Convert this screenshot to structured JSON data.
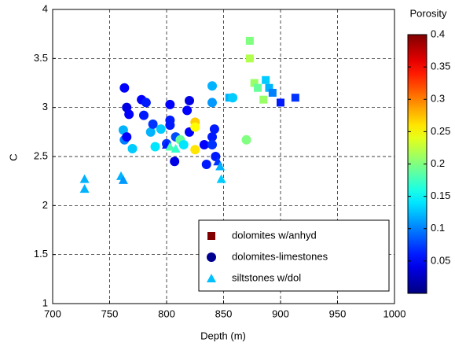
{
  "chart_data": {
    "type": "scatter",
    "xlabel": "Depth (m)",
    "ylabel": "C",
    "xlim": [
      700,
      1000
    ],
    "xticks": [
      700,
      750,
      800,
      850,
      900,
      950,
      1000
    ],
    "ylim": [
      1,
      4
    ],
    "yticks": [
      1,
      1.5,
      2,
      2.5,
      3,
      3.5,
      4
    ],
    "grid": true,
    "legend": "lower right",
    "colorbar": {
      "label": "Porosity",
      "lim": [
        0,
        0.4
      ],
      "ticks": [
        0.05,
        0.1,
        0.15,
        0.2,
        0.25,
        0.3,
        0.35,
        0.4
      ],
      "colormap": "jet"
    },
    "series": [
      {
        "name": "dolomites w/anhyd",
        "marker": "square",
        "color": "#800000",
        "x": [
          855,
          873,
          873,
          877,
          880,
          885,
          887,
          890,
          893,
          900,
          913
        ],
        "y": [
          3.1,
          3.68,
          3.5,
          3.25,
          3.2,
          3.08,
          3.28,
          3.2,
          3.15,
          3.05,
          3.1
        ],
        "c": [
          0.12,
          0.2,
          0.22,
          0.21,
          0.19,
          0.21,
          0.13,
          0.12,
          0.1,
          0.06,
          0.07
        ]
      },
      {
        "name": "dolomites-limestones",
        "marker": "circle",
        "color": "#000090",
        "x": [
          763,
          765,
          767,
          778,
          780,
          782,
          786,
          788,
          790,
          762,
          763,
          765,
          770,
          795,
          803,
          803,
          803,
          800,
          807,
          808,
          812,
          815,
          818,
          820,
          820,
          825,
          825,
          825,
          833,
          835,
          840,
          840,
          842,
          840,
          840,
          843,
          858,
          870
        ],
        "y": [
          3.2,
          3.0,
          2.93,
          3.08,
          2.92,
          3.05,
          2.75,
          2.83,
          2.6,
          2.77,
          2.67,
          2.7,
          2.58,
          2.78,
          3.03,
          2.87,
          2.82,
          2.63,
          2.45,
          2.7,
          2.67,
          2.62,
          2.97,
          3.07,
          2.75,
          2.85,
          2.8,
          2.57,
          2.62,
          2.42,
          3.22,
          3.05,
          2.78,
          2.7,
          2.62,
          2.5,
          3.1,
          2.67
        ],
        "c": [
          0.05,
          0.04,
          0.05,
          0.05,
          0.06,
          0.06,
          0.12,
          0.07,
          0.14,
          0.12,
          0.1,
          0.05,
          0.13,
          0.13,
          0.05,
          0.06,
          0.06,
          0.07,
          0.04,
          0.08,
          0.19,
          0.14,
          0.05,
          0.04,
          0.05,
          0.27,
          0.25,
          0.26,
          0.05,
          0.06,
          0.12,
          0.11,
          0.06,
          0.06,
          0.07,
          0.06,
          0.13,
          0.2
        ]
      },
      {
        "name": "siltstones w/dol",
        "marker": "triangle",
        "color": "#00c0ff",
        "x": [
          728,
          728,
          760,
          762,
          800,
          803,
          808,
          845,
          847,
          848
        ],
        "y": [
          2.27,
          2.17,
          2.3,
          2.26,
          2.62,
          2.6,
          2.58,
          2.45,
          2.4,
          2.27
        ],
        "c": [
          0.12,
          0.12,
          0.12,
          0.11,
          0.06,
          0.18,
          0.17,
          0.07,
          0.12,
          0.13
        ]
      }
    ]
  }
}
